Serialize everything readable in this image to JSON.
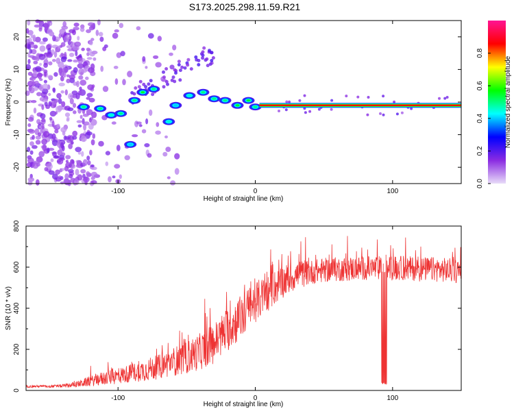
{
  "title": "S173.2025.298.11.59.R21",
  "chart_data": [
    {
      "type": "heatmap",
      "name": "spectrogram",
      "xlabel": "Height of straight line (km)",
      "ylabel": "Frequency (Hz)",
      "xlim": [
        -167,
        150
      ],
      "ylim": [
        -25,
        25
      ],
      "xticks": [
        -100,
        0,
        100
      ],
      "yticks": [
        -20,
        -10,
        0,
        10,
        20
      ],
      "colorbar": {
        "label": "Normalized spectral amplitude",
        "range": [
          0.0,
          1.0
        ],
        "ticks": [
          0.0,
          0.2,
          0.4,
          0.6,
          0.8
        ],
        "colormap": [
          "#e8dcf8",
          "#8a2be2",
          "#0000ff",
          "#00ffff",
          "#00ff00",
          "#ffff00",
          "#ff0000",
          "#ff1493"
        ]
      },
      "features": {
        "carrier_line": {
          "x_start": 3,
          "x_end": 150,
          "frequency": -1,
          "amplitude": 0.85
        },
        "chirp_blobs": [
          {
            "x": -125,
            "f": -1.5,
            "a": 0.5
          },
          {
            "x": -113,
            "f": -2,
            "a": 0.5
          },
          {
            "x": -105,
            "f": -4,
            "a": 0.45
          },
          {
            "x": -98,
            "f": -3.5,
            "a": 0.5
          },
          {
            "x": -88,
            "f": 0.5,
            "a": 0.5
          },
          {
            "x": -82,
            "f": 3,
            "a": 0.55
          },
          {
            "x": -74,
            "f": 4,
            "a": 0.5
          },
          {
            "x": -63,
            "f": -6,
            "a": 0.45
          },
          {
            "x": -58,
            "f": -1,
            "a": 0.4
          },
          {
            "x": -48,
            "f": 2,
            "a": 0.45
          },
          {
            "x": -38,
            "f": 3,
            "a": 0.5
          },
          {
            "x": -30,
            "f": 1,
            "a": 0.5
          },
          {
            "x": -22,
            "f": 0.5,
            "a": 0.5
          },
          {
            "x": -13,
            "f": -1,
            "a": 0.55
          },
          {
            "x": -5,
            "f": 0.5,
            "a": 0.55
          },
          {
            "x": 0,
            "f": -1.5,
            "a": 0.5
          },
          {
            "x": -91,
            "f": -13,
            "a": 0.4
          }
        ]
      }
    },
    {
      "type": "line",
      "name": "snr",
      "xlabel": "Height of straight line (km)",
      "ylabel": "SNR (10 * v/v)",
      "xlim": [
        -167,
        150
      ],
      "ylim": [
        0,
        800
      ],
      "xticks": [
        -100,
        0,
        100
      ],
      "yticks": [
        0,
        200,
        400,
        600,
        800
      ],
      "color": "#ee3333",
      "series": [
        {
          "name": "SNR",
          "x": [
            -167,
            -150,
            -140,
            -130,
            -120,
            -110,
            -100,
            -90,
            -80,
            -70,
            -60,
            -50,
            -40,
            -30,
            -20,
            -10,
            0,
            10,
            20,
            30,
            40,
            50,
            60,
            70,
            80,
            90,
            100,
            110,
            120,
            130,
            140,
            150
          ],
          "y": [
            20,
            20,
            22,
            30,
            45,
            60,
            70,
            85,
            100,
            115,
            140,
            160,
            190,
            230,
            300,
            360,
            430,
            480,
            530,
            560,
            575,
            585,
            590,
            592,
            595,
            595,
            595,
            595,
            590,
            590,
            585,
            580
          ],
          "noise": [
            6,
            6,
            8,
            15,
            25,
            35,
            40,
            45,
            55,
            60,
            70,
            80,
            90,
            100,
            110,
            110,
            100,
            90,
            80,
            70,
            60,
            60,
            60,
            60,
            60,
            60,
            60,
            60,
            60,
            60,
            60,
            60
          ]
        }
      ],
      "dropout": {
        "x_range": [
          92,
          96
        ],
        "y": 30
      }
    }
  ]
}
